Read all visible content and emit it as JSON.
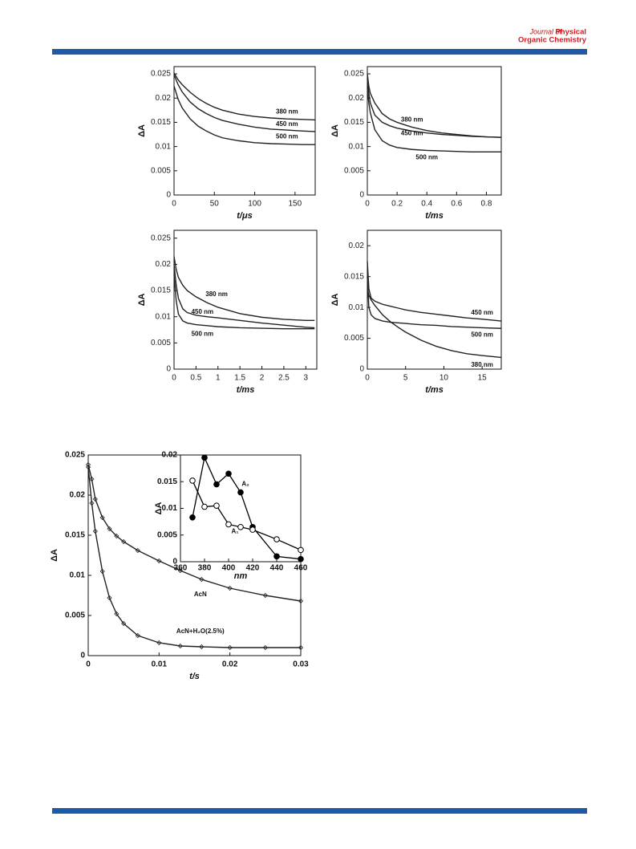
{
  "header": {
    "journal_prefix": "Journal of",
    "journal_line1": "Physical",
    "journal_line2": "Organic Chemistry"
  },
  "chart_data": [
    {
      "type": "line",
      "xlabel": "t/μs",
      "ylabel": "ΔA",
      "xlim": [
        0,
        175
      ],
      "ylim": [
        0,
        0.0265
      ],
      "xticks": [
        0,
        50,
        100,
        150
      ],
      "yticks": [
        0,
        0.005,
        0.01,
        0.015,
        0.02,
        0.025
      ],
      "x": [
        0,
        5,
        10,
        20,
        30,
        40,
        50,
        60,
        80,
        100,
        120,
        140,
        160,
        175
      ],
      "series": [
        {
          "name": "380 nm",
          "color": "#222222",
          "values": [
            0.0252,
            0.0238,
            0.0228,
            0.0212,
            0.0199,
            0.0189,
            0.0181,
            0.0175,
            0.0167,
            0.0162,
            0.0159,
            0.0157,
            0.0156,
            0.0155
          ]
        },
        {
          "name": "450 nm",
          "color": "#222222",
          "values": [
            0.0248,
            0.0228,
            0.0213,
            0.0192,
            0.0178,
            0.0168,
            0.016,
            0.0154,
            0.0146,
            0.014,
            0.0136,
            0.0134,
            0.0132,
            0.0131
          ]
        },
        {
          "name": "500 nm",
          "color": "#222222",
          "values": [
            0.0225,
            0.0198,
            0.018,
            0.0157,
            0.0142,
            0.0132,
            0.0124,
            0.0118,
            0.0112,
            0.0108,
            0.0106,
            0.0105,
            0.0104,
            0.0104
          ]
        }
      ]
    },
    {
      "type": "line",
      "xlabel": "t/ms",
      "ylabel": "ΔA",
      "xlim": [
        0,
        0.9
      ],
      "ylim": [
        0,
        0.0265
      ],
      "xticks": [
        0,
        0.2,
        0.4,
        0.6,
        0.8
      ],
      "yticks": [
        0,
        0.005,
        0.01,
        0.015,
        0.02,
        0.025
      ],
      "x": [
        0,
        0.01,
        0.02,
        0.05,
        0.1,
        0.15,
        0.2,
        0.3,
        0.4,
        0.5,
        0.6,
        0.7,
        0.8,
        0.9
      ],
      "series": [
        {
          "name": "380 nm",
          "color": "#222222",
          "values": [
            0.025,
            0.0225,
            0.021,
            0.019,
            0.0168,
            0.0157,
            0.015,
            0.014,
            0.0133,
            0.0128,
            0.0125,
            0.0122,
            0.012,
            0.0119
          ]
        },
        {
          "name": "450 nm",
          "color": "#222222",
          "values": [
            0.024,
            0.021,
            0.019,
            0.0165,
            0.015,
            0.0143,
            0.0138,
            0.0132,
            0.0128,
            0.0125,
            0.0123,
            0.0121,
            0.012,
            0.0119
          ]
        },
        {
          "name": "500 nm",
          "color": "#222222",
          "values": [
            0.022,
            0.019,
            0.017,
            0.0135,
            0.0112,
            0.0103,
            0.0098,
            0.0094,
            0.0092,
            0.0091,
            0.009,
            0.0089,
            0.0089,
            0.0089
          ]
        }
      ]
    },
    {
      "type": "line",
      "xlabel": "t/ms",
      "ylabel": "ΔA",
      "xlim": [
        0,
        3.25
      ],
      "ylim": [
        0,
        0.0265
      ],
      "xticks": [
        0,
        0.5,
        1,
        1.5,
        2,
        2.5,
        3
      ],
      "yticks": [
        0,
        0.005,
        0.01,
        0.015,
        0.02,
        0.025
      ],
      "x": [
        0,
        0.05,
        0.1,
        0.2,
        0.3,
        0.5,
        0.75,
        1,
        1.5,
        2,
        2.5,
        3,
        3.2
      ],
      "series": [
        {
          "name": "380 nm",
          "color": "#222222",
          "values": [
            0.0215,
            0.019,
            0.0175,
            0.016,
            0.015,
            0.0138,
            0.0127,
            0.0118,
            0.0106,
            0.0099,
            0.0095,
            0.0093,
            0.0093
          ]
        },
        {
          "name": "450 nm",
          "color": "#222222",
          "values": [
            0.02,
            0.016,
            0.0135,
            0.0115,
            0.0108,
            0.0103,
            0.01,
            0.0098,
            0.0093,
            0.0088,
            0.0084,
            0.008,
            0.0079
          ]
        },
        {
          "name": "500 nm",
          "color": "#222222",
          "values": [
            0.018,
            0.013,
            0.0105,
            0.0092,
            0.0088,
            0.0085,
            0.0083,
            0.0081,
            0.0079,
            0.0078,
            0.0077,
            0.0077,
            0.0077
          ]
        }
      ]
    },
    {
      "type": "line",
      "xlabel": "t/ms",
      "ylabel": "ΔA",
      "xlim": [
        0,
        17.5
      ],
      "ylim": [
        0,
        0.0225
      ],
      "xticks": [
        0,
        5,
        10,
        15
      ],
      "yticks": [
        0,
        0.005,
        0.01,
        0.015,
        0.02
      ],
      "x": [
        0,
        0.2,
        0.5,
        1,
        2,
        3,
        4,
        5,
        7,
        9,
        11,
        13,
        15,
        17.5
      ],
      "series": [
        {
          "name": "450 nm",
          "color": "#222222",
          "values": [
            0.0175,
            0.013,
            0.0115,
            0.011,
            0.0105,
            0.0102,
            0.0099,
            0.0096,
            0.0092,
            0.0089,
            0.0086,
            0.0083,
            0.0081,
            0.0078
          ]
        },
        {
          "name": "500 nm",
          "color": "#222222",
          "values": [
            0.015,
            0.01,
            0.0088,
            0.0082,
            0.0078,
            0.0076,
            0.0075,
            0.0074,
            0.0072,
            0.0071,
            0.0069,
            0.0068,
            0.0067,
            0.0066
          ]
        },
        {
          "name": "380 nm",
          "color": "#222222",
          "values": [
            0.013,
            0.012,
            0.0112,
            0.0103,
            0.0088,
            0.0077,
            0.0068,
            0.006,
            0.0047,
            0.0037,
            0.003,
            0.0025,
            0.0022,
            0.0019
          ]
        }
      ]
    },
    {
      "type": "line",
      "xlabel": "t/s",
      "ylabel": "ΔA",
      "xlim": [
        0,
        0.03
      ],
      "ylim": [
        0,
        0.025
      ],
      "xticks": [
        0,
        0.01,
        0.02,
        0.03
      ],
      "yticks": [
        0,
        0.005,
        0.01,
        0.015,
        0.02,
        0.025
      ],
      "marker": "diamond",
      "x": [
        0,
        0.0005,
        0.001,
        0.002,
        0.003,
        0.004,
        0.005,
        0.007,
        0.01,
        0.013,
        0.016,
        0.02,
        0.025,
        0.03
      ],
      "series": [
        {
          "name": "AcN",
          "color": "#222222",
          "values": [
            0.0238,
            0.022,
            0.0195,
            0.0172,
            0.0158,
            0.0149,
            0.0142,
            0.0131,
            0.0118,
            0.0106,
            0.0095,
            0.0084,
            0.0075,
            0.0068
          ]
        },
        {
          "name": "AcN+H₂O(2.5%)",
          "color": "#222222",
          "values": [
            0.0235,
            0.019,
            0.0155,
            0.0105,
            0.0072,
            0.0052,
            0.004,
            0.0025,
            0.0016,
            0.0012,
            0.0011,
            0.001,
            0.001,
            0.001
          ]
        }
      ]
    },
    {
      "type": "line",
      "xlabel": "nm",
      "ylabel": "ΔA",
      "xlim": [
        360,
        460
      ],
      "ylim": [
        0,
        0.02
      ],
      "xticks": [
        360,
        380,
        400,
        420,
        440,
        460
      ],
      "yticks": [
        0,
        0.005,
        0.01,
        0.015,
        0.02
      ],
      "marker": "circle",
      "x": [
        370,
        380,
        390,
        400,
        410,
        420,
        440,
        460
      ],
      "series": [
        {
          "name": "A₂",
          "color": "#000000",
          "marker_fill": "filled",
          "values": [
            0.0083,
            0.0195,
            0.0145,
            0.0165,
            0.013,
            0.0065,
            0.001,
            0.0005
          ]
        },
        {
          "name": "A₁",
          "color": "#000000",
          "marker_fill": "open",
          "values": [
            0.0152,
            0.0103,
            0.0105,
            0.007,
            0.0065,
            0.006,
            0.0042,
            0.0022
          ]
        }
      ]
    }
  ]
}
